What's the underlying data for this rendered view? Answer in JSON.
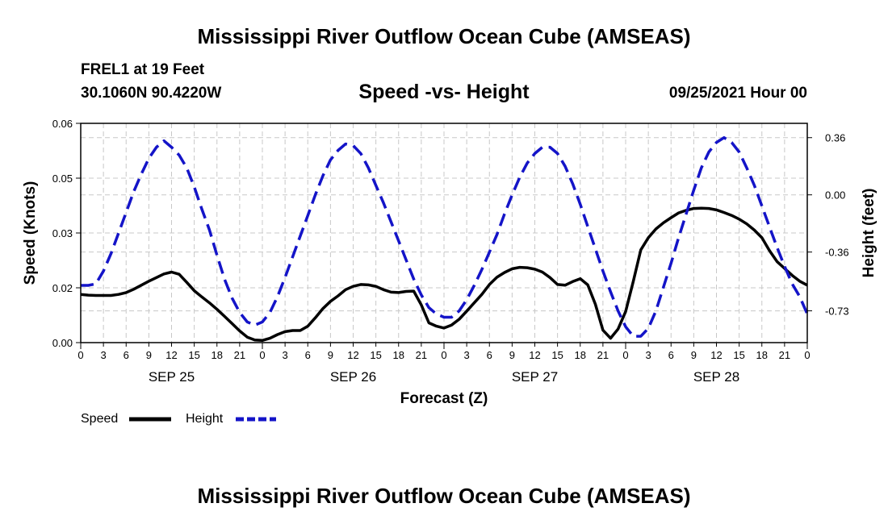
{
  "header": {
    "title": "Mississippi River Outflow Ocean Cube (AMSEAS)",
    "station": "FREL1 at 19 Feet",
    "coords": "30.1060N  90.4220W",
    "subtitle": "Speed -vs- Height",
    "datetime": "09/25/2021 Hour 00"
  },
  "footer": {
    "title": "Mississippi River Outflow Ocean Cube (AMSEAS)"
  },
  "chart_data": {
    "type": "line",
    "title": "Speed -vs- Height",
    "xlabel": "Forecast (Z)",
    "ylabel": "Speed (Knots)",
    "y2label": "Height (feet)",
    "x_range_hours": [
      0,
      96
    ],
    "ylim": [
      0,
      0.06
    ],
    "y2lim": [
      -0.93,
      0.45
    ],
    "x_tick_labels": [
      "0",
      "3",
      "6",
      "9",
      "12",
      "15",
      "18",
      "21",
      "0",
      "3",
      "6",
      "9",
      "12",
      "15",
      "18",
      "21",
      "0",
      "3",
      "6",
      "9",
      "12",
      "15",
      "18",
      "21",
      "0",
      "3",
      "6",
      "9",
      "12",
      "15",
      "18",
      "21",
      "0"
    ],
    "date_labels": [
      {
        "label": "SEP 25",
        "hour": 12
      },
      {
        "label": "SEP 26",
        "hour": 36
      },
      {
        "label": "SEP 27",
        "hour": 60
      },
      {
        "label": "SEP 28",
        "hour": 84
      }
    ],
    "y_ticks": [
      "0.00",
      "0.02",
      "0.03",
      "0.05",
      "0.06"
    ],
    "y_tick_values": [
      0,
      0.015,
      0.03,
      0.045,
      0.06
    ],
    "y2_ticks": [
      "0.36",
      "0.00",
      "-0.36",
      "-0.73"
    ],
    "y2_tick_values": [
      0.36,
      0.0,
      -0.36,
      -0.73
    ],
    "grid": true,
    "series": [
      {
        "name": "Speed",
        "axis": "left",
        "color": "#000000",
        "style": "solid",
        "x": [
          0,
          1,
          2,
          3,
          4,
          5,
          6,
          7,
          8,
          9,
          10,
          11,
          12,
          13,
          14,
          15,
          16,
          17,
          18,
          19,
          20,
          21,
          22,
          23,
          24,
          25,
          26,
          27,
          28,
          29,
          30,
          31,
          32,
          33,
          34,
          35,
          36,
          37,
          38,
          39,
          40,
          41,
          42,
          43,
          44,
          45,
          46,
          47,
          48,
          49,
          50,
          51,
          52,
          53,
          54,
          55,
          56,
          57,
          58,
          59,
          60,
          61,
          62,
          63,
          64,
          65,
          66,
          67,
          68,
          69,
          70,
          71,
          72,
          73,
          74,
          75,
          76,
          77,
          78,
          79,
          80,
          81,
          82,
          83,
          84,
          85,
          86,
          87,
          88,
          89,
          90,
          91,
          92,
          93,
          94,
          95,
          96
        ],
        "values": [
          0.0132,
          0.013,
          0.0129,
          0.0129,
          0.0129,
          0.0132,
          0.0137,
          0.0146,
          0.0157,
          0.0168,
          0.0178,
          0.0188,
          0.0193,
          0.0187,
          0.0165,
          0.0142,
          0.0125,
          0.0109,
          0.0091,
          0.0072,
          0.0052,
          0.0032,
          0.0015,
          0.0007,
          0.0006,
          0.0012,
          0.0022,
          0.003,
          0.0033,
          0.0033,
          0.0045,
          0.0068,
          0.0093,
          0.0113,
          0.0128,
          0.0145,
          0.0154,
          0.0159,
          0.0158,
          0.0154,
          0.0145,
          0.0138,
          0.0137,
          0.014,
          0.0141,
          0.0103,
          0.0054,
          0.0045,
          0.004,
          0.0048,
          0.0064,
          0.0086,
          0.0109,
          0.0132,
          0.0159,
          0.0179,
          0.0192,
          0.0202,
          0.0206,
          0.0205,
          0.0201,
          0.0193,
          0.0178,
          0.0159,
          0.0157,
          0.0167,
          0.0175,
          0.0158,
          0.0105,
          0.0034,
          0.0012,
          0.0037,
          0.0085,
          0.0167,
          0.0254,
          0.0287,
          0.0311,
          0.0328,
          0.0342,
          0.0355,
          0.0362,
          0.0367,
          0.0368,
          0.0367,
          0.0363,
          0.0356,
          0.0348,
          0.0338,
          0.0325,
          0.0308,
          0.0287,
          0.0252,
          0.0222,
          0.0203,
          0.0184,
          0.0168,
          0.0157
        ]
      },
      {
        "name": "Height",
        "axis": "right",
        "color": "#1414c8",
        "style": "dashed",
        "x": [
          0,
          1,
          2,
          3,
          4,
          5,
          6,
          7,
          8,
          9,
          10,
          11,
          12,
          13,
          14,
          15,
          16,
          17,
          18,
          19,
          20,
          21,
          22,
          23,
          24,
          25,
          26,
          27,
          28,
          29,
          30,
          31,
          32,
          33,
          34,
          35,
          36,
          37,
          38,
          39,
          40,
          41,
          42,
          43,
          44,
          45,
          46,
          47,
          48,
          49,
          50,
          51,
          52,
          53,
          54,
          55,
          56,
          57,
          58,
          59,
          60,
          61,
          62,
          63,
          64,
          65,
          66,
          67,
          68,
          69,
          70,
          71,
          72,
          73,
          74,
          75,
          76,
          77,
          78,
          79,
          80,
          81,
          82,
          83,
          84,
          85,
          86,
          87,
          88,
          89,
          90,
          91,
          92,
          93,
          94,
          95,
          96
        ],
        "values": [
          -0.57,
          -0.57,
          -0.56,
          -0.48,
          -0.37,
          -0.24,
          -0.11,
          0.02,
          0.13,
          0.23,
          0.3,
          0.34,
          0.3,
          0.25,
          0.17,
          0.05,
          -0.09,
          -0.22,
          -0.38,
          -0.53,
          -0.65,
          -0.74,
          -0.8,
          -0.82,
          -0.8,
          -0.74,
          -0.64,
          -0.52,
          -0.39,
          -0.26,
          -0.13,
          0.0,
          0.12,
          0.22,
          0.28,
          0.32,
          0.31,
          0.26,
          0.17,
          0.06,
          -0.05,
          -0.17,
          -0.29,
          -0.41,
          -0.53,
          -0.63,
          -0.71,
          -0.75,
          -0.77,
          -0.77,
          -0.73,
          -0.66,
          -0.57,
          -0.47,
          -0.36,
          -0.25,
          -0.12,
          0.0,
          0.11,
          0.2,
          0.26,
          0.3,
          0.3,
          0.26,
          0.18,
          0.07,
          -0.06,
          -0.2,
          -0.34,
          -0.48,
          -0.61,
          -0.73,
          -0.83,
          -0.89,
          -0.89,
          -0.84,
          -0.73,
          -0.58,
          -0.43,
          -0.27,
          -0.12,
          0.03,
          0.17,
          0.27,
          0.33,
          0.36,
          0.33,
          0.27,
          0.17,
          0.06,
          -0.07,
          -0.2,
          -0.33,
          -0.45,
          -0.56,
          -0.64,
          -0.75
        ]
      }
    ],
    "legend": {
      "position": "bottom-left",
      "entries": [
        {
          "label": "Speed",
          "color": "#000000",
          "style": "solid"
        },
        {
          "label": "Height",
          "color": "#1414c8",
          "style": "dashed"
        }
      ]
    }
  }
}
